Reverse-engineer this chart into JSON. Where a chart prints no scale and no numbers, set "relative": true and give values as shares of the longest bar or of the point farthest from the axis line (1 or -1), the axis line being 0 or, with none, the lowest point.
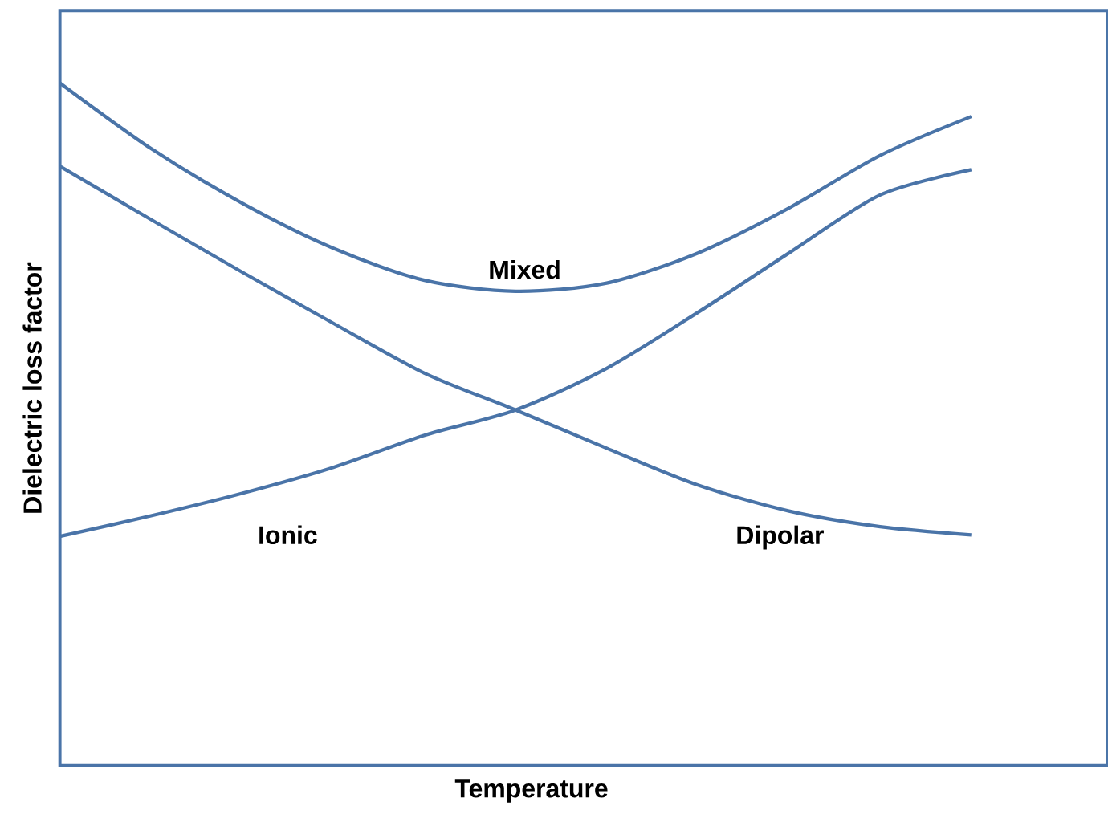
{
  "chart_data": {
    "type": "line",
    "relative": true,
    "xlabel": "Temperature",
    "ylabel": "Dielectric loss factor",
    "categories": [
      null,
      null,
      null,
      null,
      null,
      null,
      null,
      null,
      null,
      null,
      null
    ],
    "series": [
      {
        "name": "Mixed",
        "color": "#4a74a8",
        "values": [
          1.0,
          0.904,
          0.824,
          0.758,
          0.711,
          0.695,
          0.707,
          0.751,
          0.817,
          0.894,
          0.951
        ]
      },
      {
        "name": "Ionic",
        "color": "#4a74a8",
        "values": [
          0.336,
          0.366,
          0.399,
          0.437,
          0.484,
          0.521,
          0.582,
          0.664,
          0.751,
          0.836,
          0.873
        ]
      },
      {
        "name": "Dipolar",
        "color": "#4a74a8",
        "values": [
          0.878,
          0.8,
          0.723,
          0.648,
          0.575,
          0.521,
          0.465,
          0.411,
          0.373,
          0.35,
          0.338
        ]
      }
    ]
  }
}
